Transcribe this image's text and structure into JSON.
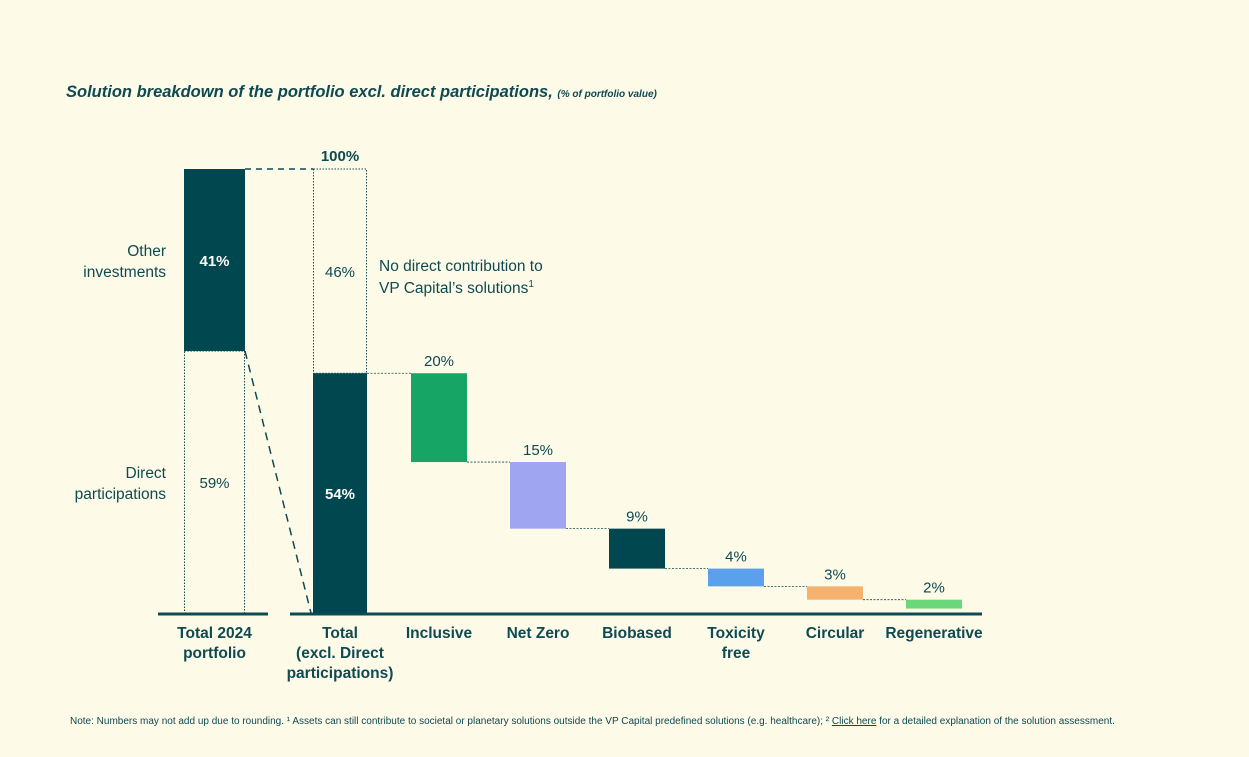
{
  "title": {
    "main": "Solution breakdown of the portfolio excl. direct participations,",
    "unit": "(% of portfolio value)"
  },
  "chart_data": {
    "type": "bar",
    "subtype": "waterfall",
    "unit": "% of portfolio value",
    "ylim": [
      0,
      100
    ],
    "grid": false,
    "total_2024": {
      "category": [
        "Total 2024",
        "portfolio"
      ],
      "segments": [
        {
          "name": [
            "Direct",
            "participations"
          ],
          "value": 59,
          "label": "59%",
          "style": "outline"
        },
        {
          "name": [
            "Other",
            "investments"
          ],
          "value": 41,
          "label": "41%",
          "style": "filled",
          "color": "#00474f"
        }
      ]
    },
    "total_excl": {
      "category": [
        "Total",
        "(excl. Direct",
        "participations)"
      ],
      "top_label": "100%",
      "segments": [
        {
          "value": 54,
          "label": "54%",
          "style": "filled",
          "color": "#00474f"
        },
        {
          "value": 46,
          "label": "46%",
          "style": "outline"
        }
      ],
      "annotation": {
        "lines": [
          "No direct contribution to",
          "VP Capital’s solutions"
        ],
        "superscript": "1"
      }
    },
    "solutions": [
      {
        "category": [
          "Inclusive"
        ],
        "value": 20,
        "label": "20%",
        "color": "#17a566"
      },
      {
        "category": [
          "Net Zero"
        ],
        "value": 15,
        "label": "15%",
        "color": "#a0a5f2"
      },
      {
        "category": [
          "Biobased"
        ],
        "value": 9,
        "label": "9%",
        "color": "#00474f"
      },
      {
        "category": [
          "Toxicity",
          "free"
        ],
        "value": 4,
        "label": "4%",
        "color": "#5aa0ec"
      },
      {
        "category": [
          "Circular"
        ],
        "value": 3,
        "label": "3%",
        "color": "#f5b16f"
      },
      {
        "category": [
          "Regenerative"
        ],
        "value": 2,
        "label": "2%",
        "color": "#6cd67a"
      }
    ]
  },
  "note": {
    "text_before": "Note: Numbers may not add up due to rounding. ¹ Assets can still contribute to societal or planetary solutions outside the VP Capital predefined solutions (e.g. healthcare); ²",
    "link": "Click here",
    "text_after": "for a detailed explanation of the solution assessment."
  },
  "colors": {
    "background": "#fefae8",
    "text": "#0d4a52",
    "dark_teal": "#00474f"
  }
}
